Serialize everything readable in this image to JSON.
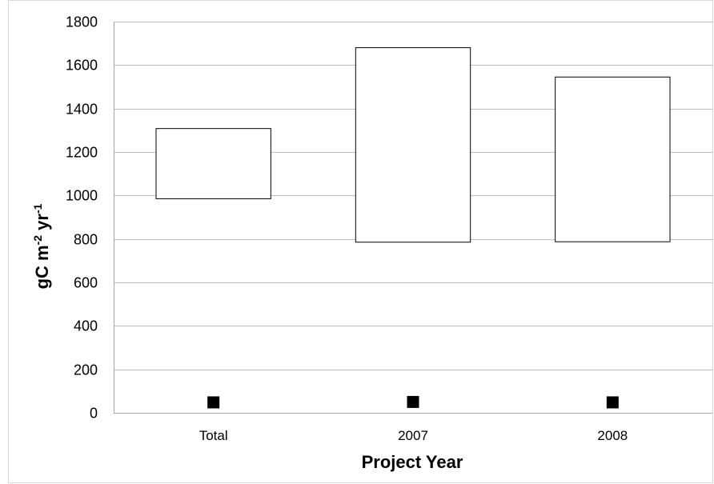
{
  "chart_data": {
    "type": "floating-bar",
    "categories": [
      "Total",
      "2007",
      "2008"
    ],
    "series": [
      {
        "name": "",
        "kind": "range",
        "low": [
          985,
          785,
          787
        ],
        "high": [
          1308,
          1680,
          1545
        ]
      },
      {
        "name": "",
        "kind": "marker",
        "values": [
          48,
          50,
          48
        ]
      }
    ],
    "xlabel": "Project Year",
    "ylabel": {
      "base": "gC m",
      "sup1": "-2",
      "mid": " yr",
      "sup2": "-1"
    },
    "ylim": [
      0,
      1800
    ],
    "yticks": [
      0,
      200,
      400,
      600,
      800,
      1000,
      1200,
      1400,
      1600,
      1800
    ],
    "grid": true,
    "legend": "none",
    "colors": {
      "bar_fill": "#ffffff",
      "bar_stroke": "#000000",
      "grid": "#bfbfbf",
      "marker": "#000000",
      "border": "#d9d9d9"
    }
  }
}
